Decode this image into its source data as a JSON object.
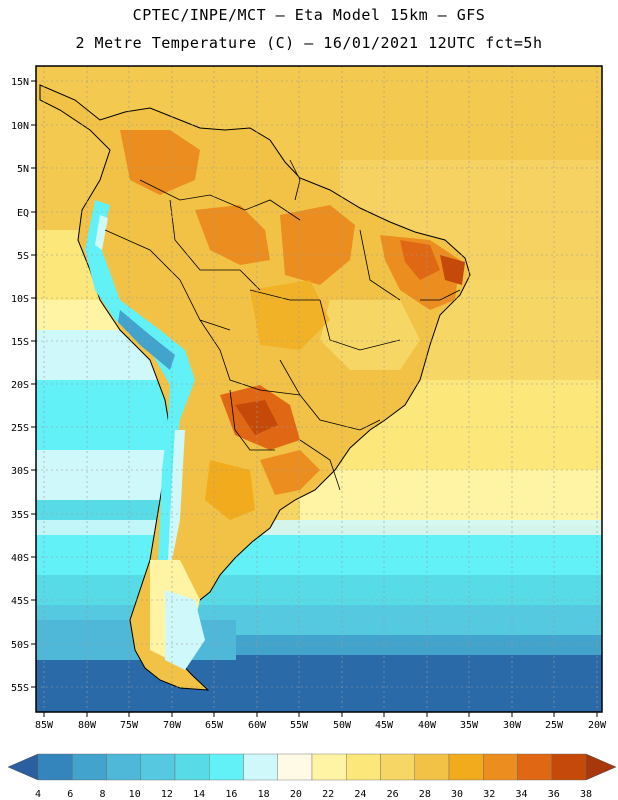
{
  "title_line1": "CPTEC/INPE/MCT –  Eta Model 15km – GFS",
  "title_line2": "2 Metre Temperature (C) – 16/01/2021 12UTC fct=5h",
  "lat_labels": [
    "15N",
    "10N",
    "5N",
    "EQ",
    "5S",
    "10S",
    "15S",
    "20S",
    "25S",
    "30S",
    "35S",
    "40S",
    "45S",
    "50S",
    "55S"
  ],
  "lon_labels": [
    "85W",
    "80W",
    "75W",
    "70W",
    "65W",
    "60W",
    "55W",
    "50W",
    "45W",
    "40W",
    "35W",
    "30W",
    "25W",
    "20W"
  ],
  "colorbar": {
    "ticks": [
      "4",
      "6",
      "8",
      "10",
      "12",
      "14",
      "16",
      "18",
      "20",
      "22",
      "24",
      "26",
      "28",
      "30",
      "32",
      "34",
      "36",
      "38"
    ],
    "colors": [
      "#2b6aa8",
      "#3585bd",
      "#42a3cc",
      "#4fb8d9",
      "#55c9df",
      "#57dbe6",
      "#63f1f8",
      "#cff8fb",
      "#fffae6",
      "#fef4a4",
      "#fbe77a",
      "#f6d665",
      "#f1c245",
      "#f2ab1d",
      "#ec8e1f",
      "#e06713",
      "#c54a0a",
      "#b5400c"
    ]
  }
}
